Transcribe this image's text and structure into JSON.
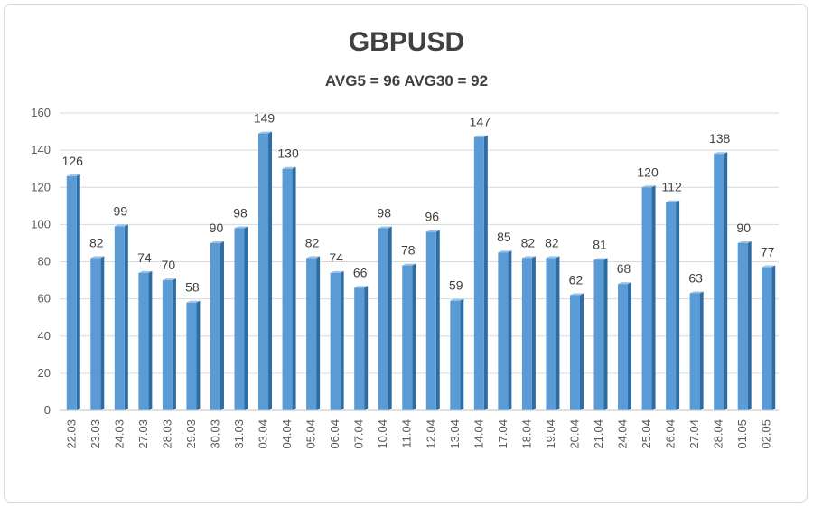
{
  "chart_data": {
    "type": "bar",
    "title": "GBPUSD",
    "subtitle": "AVG5 = 96 AVG30 = 92",
    "categories": [
      "22.03",
      "23.03",
      "24.03",
      "27.03",
      "28.03",
      "29.03",
      "30.03",
      "31.03",
      "03.04",
      "04.04",
      "05.04",
      "06.04",
      "07.04",
      "10.04",
      "11.04",
      "12.04",
      "13.04",
      "14.04",
      "17.04",
      "18.04",
      "19.04",
      "20.04",
      "21.04",
      "24.04",
      "25.04",
      "26.04",
      "27.04",
      "28.04",
      "01.05",
      "02.05"
    ],
    "values": [
      126,
      82,
      99,
      74,
      70,
      58,
      90,
      98,
      149,
      130,
      82,
      74,
      66,
      98,
      78,
      96,
      59,
      147,
      85,
      82,
      82,
      62,
      81,
      68,
      120,
      112,
      63,
      138,
      90,
      77
    ],
    "ylim": [
      0,
      160
    ],
    "yticks": [
      "0",
      "20",
      "40",
      "60",
      "80",
      "100",
      "120",
      "140",
      "160"
    ],
    "xlabel": "",
    "ylabel": "",
    "grid": true,
    "legend": "none",
    "colors": {
      "bar_front": "#5b9bd5",
      "bar_side": "#2e6ca4",
      "bar_top": "#9dc3e6",
      "gridline": "#d9d9d9",
      "text": "#404040"
    }
  }
}
